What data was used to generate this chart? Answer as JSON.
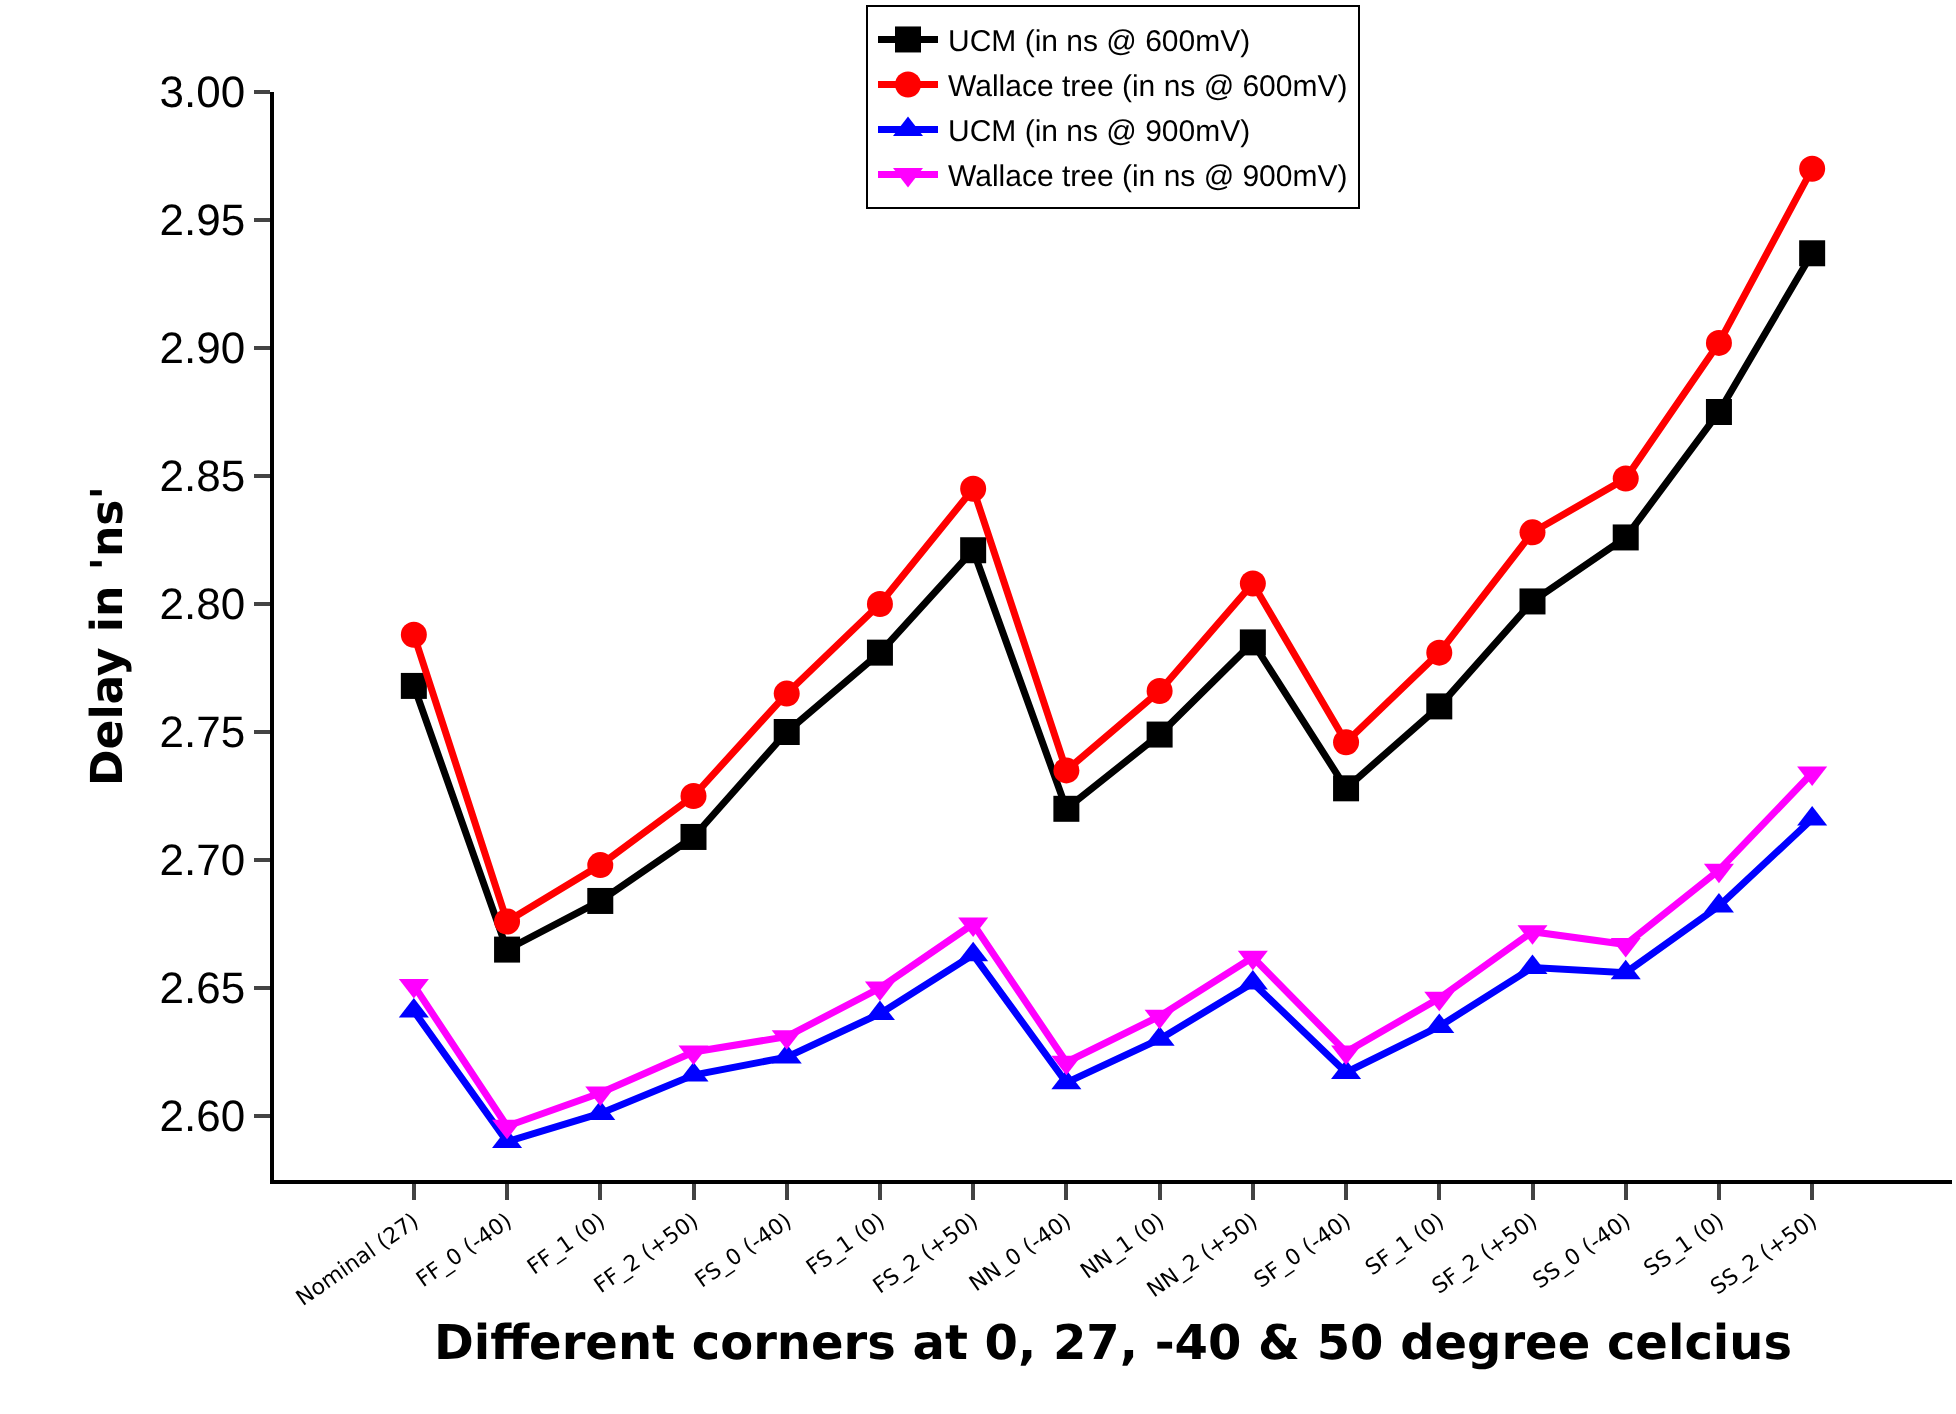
{
  "chart_data": {
    "type": "line",
    "xlabel": "Different corners at 0, 27, -40 & 50 degree celcius",
    "ylabel": "Delay in 'ns'",
    "categories": [
      "Nominal (27)",
      "FF_0 (-40)",
      "FF_1 (0)",
      "FF_2 (+50)",
      "FS_0 (-40)",
      "FS_1 (0)",
      "FS_2 (+50)",
      "NN_0 (-40)",
      "NN_1 (0)",
      "NN_2 (+50)",
      "SF_0 (-40)",
      "SF_1 (0)",
      "SF_2 (+50)",
      "SS_0 (-40)",
      "SS_1 (0)",
      "SS_2 (+50)"
    ],
    "series": [
      {
        "name": "UCM (in ns @ 600mV)",
        "color": "#000000",
        "marker": "square",
        "values": [
          2.768,
          2.665,
          2.684,
          2.709,
          2.75,
          2.781,
          2.821,
          2.72,
          2.749,
          2.785,
          2.728,
          2.76,
          2.801,
          2.826,
          2.875,
          2.937
        ]
      },
      {
        "name": "Wallace tree (in ns @ 600mV)",
        "color": "#ff0000",
        "marker": "circle",
        "values": [
          2.788,
          2.676,
          2.698,
          2.725,
          2.765,
          2.8,
          2.845,
          2.735,
          2.766,
          2.808,
          2.746,
          2.781,
          2.828,
          2.849,
          2.902,
          2.97
        ]
      },
      {
        "name": "UCM (in ns @ 900mV)",
        "color": "#0000ff",
        "marker": "triangle",
        "values": [
          2.641,
          2.59,
          2.601,
          2.616,
          2.623,
          2.64,
          2.663,
          2.613,
          2.63,
          2.652,
          2.617,
          2.635,
          2.658,
          2.656,
          2.682,
          2.716
        ]
      },
      {
        "name": "Wallace tree (in ns @ 900mV)",
        "color": "#ff00ff",
        "marker": "triangle-down",
        "values": [
          2.651,
          2.596,
          2.609,
          2.625,
          2.631,
          2.65,
          2.675,
          2.621,
          2.639,
          2.662,
          2.625,
          2.646,
          2.672,
          2.667,
          2.696,
          2.734
        ]
      }
    ],
    "ylim": [
      2.575,
      3.0
    ],
    "yticks": [
      {
        "value": 2.6,
        "label": "2.60"
      },
      {
        "value": 2.65,
        "label": "2.65"
      },
      {
        "value": 2.7,
        "label": "2.70"
      },
      {
        "value": 2.75,
        "label": "2.75"
      },
      {
        "value": 2.8,
        "label": "2.80"
      },
      {
        "value": 2.85,
        "label": "2.85"
      },
      {
        "value": 2.9,
        "label": "2.90"
      },
      {
        "value": 2.95,
        "label": "2.95"
      },
      {
        "value": 3.0,
        "label": "3.00"
      }
    ],
    "grid": false,
    "legend": "top",
    "line_style": "solid"
  }
}
